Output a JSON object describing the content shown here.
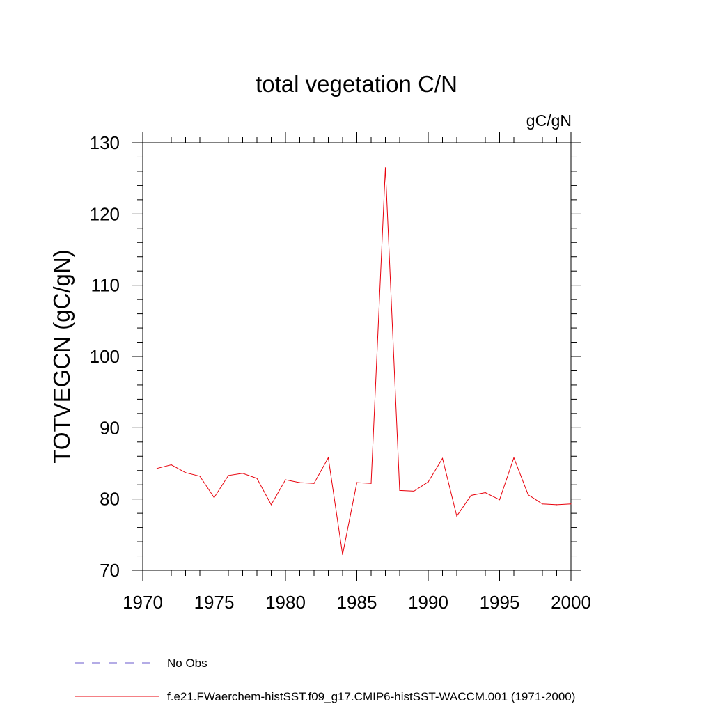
{
  "chart_data": {
    "type": "line",
    "title": "total vegetation C/N",
    "units": "gC/gN",
    "xlabel": "",
    "ylabel": "TOTVEGCN  (gC/gN)",
    "xlim": [
      1970,
      2000
    ],
    "ylim": [
      70,
      130
    ],
    "x_ticks": [
      1970,
      1975,
      1980,
      1985,
      1990,
      1995,
      2000
    ],
    "y_ticks": [
      70,
      80,
      90,
      100,
      110,
      120,
      130
    ],
    "x_tick_labels": [
      "1970",
      "1975",
      "1980",
      "1985",
      "1990",
      "1995",
      "2000"
    ],
    "y_tick_labels": [
      "70",
      "80",
      "90",
      "100",
      "110",
      "120",
      "130"
    ],
    "grid": false,
    "legend_position": "bottom",
    "legend": [
      {
        "label": "No Obs",
        "style": "dashed",
        "color": "#6a5acd"
      },
      {
        "label": "f.e21.FWaerchem-histSST.f09_g17.CMIP6-histSST-WACCM.001 (1971-2000)",
        "style": "solid",
        "color": "#e8000b"
      }
    ],
    "series": [
      {
        "color": "#e8000b",
        "x": [
          1971,
          1972,
          1973,
          1974,
          1975,
          1976,
          1977,
          1978,
          1979,
          1980,
          1981,
          1982,
          1983,
          1984,
          1985,
          1986,
          1987,
          1988,
          1989,
          1990,
          1991,
          1992,
          1993,
          1994,
          1995,
          1996,
          1997,
          1998,
          1999,
          2000
        ],
        "y": [
          84.3,
          84.8,
          83.7,
          83.2,
          80.2,
          83.3,
          83.6,
          82.9,
          79.2,
          82.7,
          82.3,
          82.2,
          85.8,
          72.2,
          82.3,
          82.2,
          126.5,
          81.2,
          81.1,
          82.4,
          85.7,
          77.6,
          80.5,
          80.9,
          79.9,
          85.8,
          80.6,
          79.3,
          79.2,
          79.3
        ]
      }
    ]
  }
}
